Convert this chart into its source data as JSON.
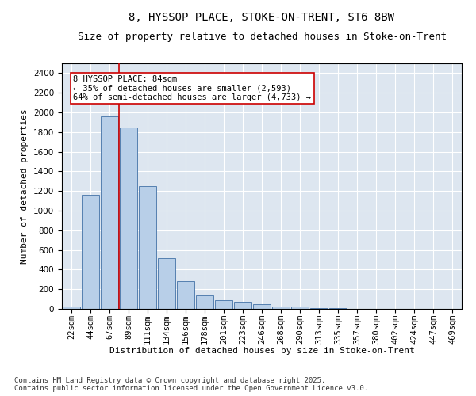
{
  "title_line1": "8, HYSSOP PLACE, STOKE-ON-TRENT, ST6 8BW",
  "title_line2": "Size of property relative to detached houses in Stoke-on-Trent",
  "xlabel": "Distribution of detached houses by size in Stoke-on-Trent",
  "ylabel": "Number of detached properties",
  "categories": [
    "22sqm",
    "44sqm",
    "67sqm",
    "89sqm",
    "111sqm",
    "134sqm",
    "156sqm",
    "178sqm",
    "201sqm",
    "223sqm",
    "246sqm",
    "268sqm",
    "290sqm",
    "313sqm",
    "335sqm",
    "357sqm",
    "380sqm",
    "402sqm",
    "424sqm",
    "447sqm",
    "469sqm"
  ],
  "values": [
    25,
    1160,
    1960,
    1850,
    1250,
    520,
    280,
    140,
    85,
    70,
    45,
    25,
    25,
    10,
    5,
    2,
    1,
    1,
    0,
    0,
    0
  ],
  "bar_color": "#b8cfe8",
  "bar_edge_color": "#5580b0",
  "bg_color": "#dde6f0",
  "grid_color": "#ffffff",
  "vline_x": 2.5,
  "vline_color": "#cc0000",
  "annotation_text": "8 HYSSOP PLACE: 84sqm\n← 35% of detached houses are smaller (2,593)\n64% of semi-detached houses are larger (4,733) →",
  "annotation_box_color": "#cc0000",
  "ylim": [
    0,
    2500
  ],
  "yticks": [
    0,
    200,
    400,
    600,
    800,
    1000,
    1200,
    1400,
    1600,
    1800,
    2000,
    2200,
    2400
  ],
  "footer_line1": "Contains HM Land Registry data © Crown copyright and database right 2025.",
  "footer_line2": "Contains public sector information licensed under the Open Government Licence v3.0.",
  "title_fontsize": 10,
  "subtitle_fontsize": 9,
  "axis_label_fontsize": 8,
  "tick_fontsize": 7.5,
  "annotation_fontsize": 7.5,
  "footer_fontsize": 6.5
}
